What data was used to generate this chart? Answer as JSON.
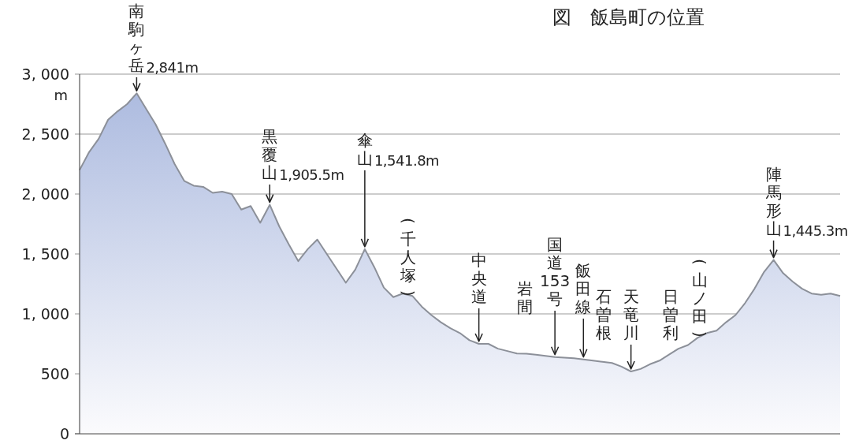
{
  "chart_data": {
    "type": "area",
    "title": "図　飯島町の位置",
    "ylabel": "m",
    "categories": [
      null,
      null,
      null,
      null,
      null,
      null,
      null,
      null,
      null,
      null,
      null,
      null,
      null,
      null,
      null,
      null,
      null,
      null,
      null,
      null,
      null,
      null,
      null,
      null,
      null,
      null,
      null,
      null,
      null,
      null,
      null,
      null,
      null,
      null,
      null,
      null,
      null,
      null,
      null,
      null,
      null,
      null,
      null,
      null,
      null,
      null,
      null,
      null,
      null,
      null,
      null,
      null,
      null,
      null,
      null,
      null,
      null,
      null,
      null,
      null,
      null,
      null,
      null,
      null,
      null,
      null,
      null,
      null,
      null,
      null,
      null,
      null,
      null,
      null,
      null,
      null,
      null,
      null,
      null,
      null,
      null
    ],
    "series": [
      {
        "color": "#a9b8de",
        "values": [
          2200,
          2350,
          2460,
          2620,
          2690,
          2750,
          2840,
          2710,
          2580,
          2420,
          2250,
          2110,
          2070,
          2060,
          2010,
          2020,
          2000,
          1870,
          1900,
          1760,
          1910,
          1730,
          1580,
          1440,
          1540,
          1620,
          1500,
          1380,
          1260,
          1370,
          1540,
          1390,
          1220,
          1140,
          1170,
          1150,
          1060,
          990,
          930,
          880,
          840,
          780,
          750,
          750,
          710,
          690,
          670,
          667,
          660,
          650,
          640,
          635,
          630,
          620,
          610,
          600,
          590,
          560,
          520,
          540,
          580,
          610,
          660,
          710,
          740,
          800,
          840,
          860,
          930,
          990,
          1090,
          1210,
          1350,
          1450,
          1340,
          1270,
          1210,
          1170,
          1160,
          1170,
          1150
        ]
      }
    ],
    "ylim": [
      0,
      3000
    ],
    "yticks": [
      0,
      500,
      {
        "value": 1000,
        "label": "1, 000"
      },
      {
        "value": 1500,
        "label": "1, 500"
      },
      {
        "value": 2000,
        "label": "2, 000"
      },
      {
        "value": 2500,
        "label": "2, 500"
      },
      {
        "value": 3000,
        "label": "3, 000"
      }
    ],
    "grid": "y",
    "tick_labels": "y",
    "annotations": [
      "南駒ヶ岳",
      "2,841m",
      "黒覆山",
      "1,905.5m",
      "傘山",
      "1,541.8m",
      "(千人塚)",
      "中央道",
      "岩間",
      "国道153号",
      "飯田線",
      "石曽根",
      "天竜川",
      "日曽利",
      "(山ノ田)",
      "陣馬形山",
      "1,445.3m"
    ]
  }
}
